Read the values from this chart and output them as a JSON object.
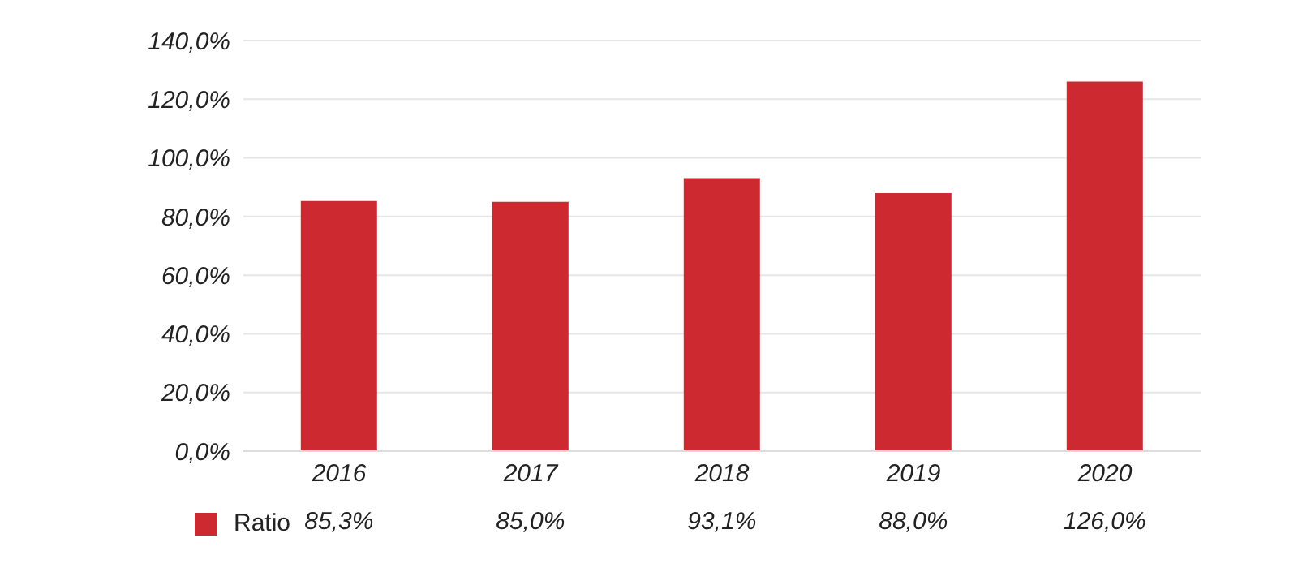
{
  "chart_data": {
    "type": "bar",
    "categories": [
      "2016",
      "2017",
      "2018",
      "2019",
      "2020"
    ],
    "series": [
      {
        "name": "Ratio",
        "color": "#cc2a30",
        "values": [
          85.3,
          85.0,
          93.1,
          88.0,
          126.0
        ],
        "value_labels": [
          "85,3%",
          "85,0%",
          "93,1%",
          "88,0%",
          "126,0%"
        ]
      }
    ],
    "ylim": [
      0,
      140
    ],
    "yticks": [
      {
        "value": 0,
        "label": "0,0%"
      },
      {
        "value": 20,
        "label": "20,0%"
      },
      {
        "value": 40,
        "label": "40,0%"
      },
      {
        "value": 60,
        "label": "60,0%"
      },
      {
        "value": 80,
        "label": "80,0%"
      },
      {
        "value": 100,
        "label": "100,0%"
      },
      {
        "value": 120,
        "label": "120,0%"
      },
      {
        "value": 140,
        "label": "140,0%"
      }
    ],
    "grid": "y",
    "legend": "bottom left"
  }
}
